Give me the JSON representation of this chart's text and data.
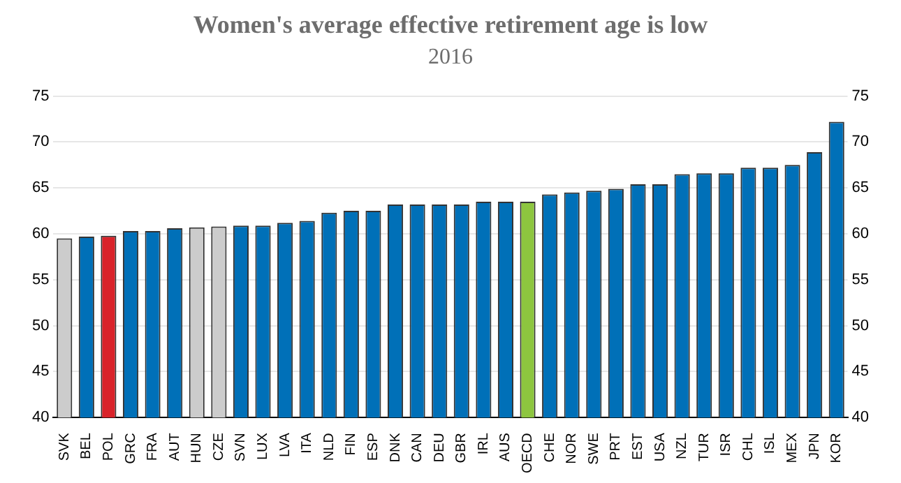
{
  "chart_data": {
    "type": "bar",
    "title": "Women's average effective retirement age is low",
    "subtitle": "2016",
    "categories": [
      "SVK",
      "BEL",
      "POL",
      "GRC",
      "FRA",
      "AUT",
      "HUN",
      "CZE",
      "SVN",
      "LUX",
      "LVA",
      "ITA",
      "NLD",
      "FIN",
      "ESP",
      "DNK",
      "CAN",
      "DEU",
      "GBR",
      "IRL",
      "AUS",
      "OECD",
      "CHE",
      "NOR",
      "SWE",
      "PRT",
      "EST",
      "USA",
      "NZL",
      "TUR",
      "ISR",
      "CHL",
      "ISL",
      "MEX",
      "JPN",
      "KOR"
    ],
    "values": [
      59.5,
      59.7,
      59.8,
      60.3,
      60.3,
      60.6,
      60.7,
      60.8,
      60.9,
      60.9,
      61.2,
      61.4,
      62.3,
      62.5,
      62.5,
      63.2,
      63.2,
      63.2,
      63.2,
      63.5,
      63.5,
      63.5,
      64.3,
      64.5,
      64.7,
      64.9,
      65.4,
      65.4,
      66.5,
      66.6,
      66.6,
      67.2,
      67.2,
      67.5,
      68.9,
      72.2
    ],
    "colors": [
      "#cccccc",
      "#0070b8",
      "#d9232a",
      "#0070b8",
      "#0070b8",
      "#0070b8",
      "#cccccc",
      "#cccccc",
      "#0070b8",
      "#0070b8",
      "#0070b8",
      "#0070b8",
      "#0070b8",
      "#0070b8",
      "#0070b8",
      "#0070b8",
      "#0070b8",
      "#0070b8",
      "#0070b8",
      "#0070b8",
      "#0070b8",
      "#8dc63f",
      "#0070b8",
      "#0070b8",
      "#0070b8",
      "#0070b8",
      "#0070b8",
      "#0070b8",
      "#0070b8",
      "#0070b8",
      "#0070b8",
      "#0070b8",
      "#0070b8",
      "#0070b8",
      "#0070b8",
      "#0070b8"
    ],
    "ylim": [
      40,
      75
    ],
    "yticks": [
      40,
      45,
      50,
      55,
      60,
      65,
      70,
      75
    ],
    "y2lim": [
      40,
      75
    ],
    "y2ticks": [
      40,
      45,
      50,
      55,
      60,
      65,
      70,
      75
    ],
    "grid": "y",
    "legend": false
  }
}
